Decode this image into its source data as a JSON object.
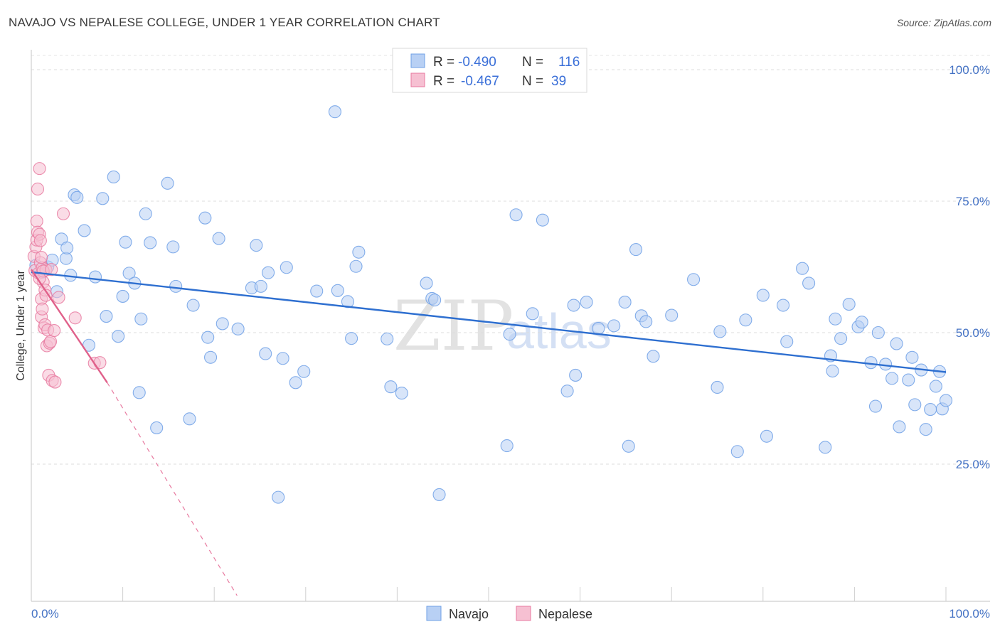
{
  "title": "NAVAJO VS NEPALESE COLLEGE, UNDER 1 YEAR CORRELATION CHART",
  "source": "Source: ZipAtlas.com",
  "colors": {
    "navajo": "#6fa0e6",
    "navajo_fill": "#b8d0f4",
    "navajo_line": "#2e6fd0",
    "nepalese": "#e87aa0",
    "nepalese_fill": "#f6c0d2",
    "nepalese_line": "#e0608a",
    "tick": "#4472c4"
  },
  "watermark": {
    "zip": "ZIP",
    "atlas": "atlas"
  },
  "chart_data": {
    "type": "scatter",
    "title": "NAVAJO VS NEPALESE COLLEGE, UNDER 1 YEAR CORRELATION CHART",
    "xlabel": "",
    "ylabel": "College, Under 1 year",
    "xlim": [
      0,
      100
    ],
    "ylim": [
      0,
      105
    ],
    "x_tick_labels": [
      "0.0%",
      "100.0%"
    ],
    "y_ticks": [
      25,
      50,
      75,
      100
    ],
    "y_tick_labels": [
      "25.0%",
      "50.0%",
      "75.0%",
      "100.0%"
    ],
    "grid": "horizontal dashed",
    "legend_placement": "top-center",
    "stats": [
      {
        "r_label": "R =",
        "r_value": "-0.490",
        "n_label": "N =",
        "n_value": "116"
      },
      {
        "r_label": "R =",
        "r_value": "-0.467",
        "n_label": "N =",
        "n_value": "39"
      }
    ],
    "series": [
      {
        "name": "Navajo",
        "trend": {
          "x": [
            0,
            100
          ],
          "y": [
            61.5,
            42.5
          ],
          "style": "solid"
        },
        "points": [
          [
            0.5,
            62.8
          ],
          [
            1.2,
            61.5
          ],
          [
            1.8,
            62.5
          ],
          [
            2.3,
            63.8
          ],
          [
            2.8,
            57.8
          ],
          [
            3.3,
            67.8
          ],
          [
            3.8,
            64.1
          ],
          [
            3.9,
            66.1
          ],
          [
            4.3,
            60.9
          ],
          [
            4.7,
            76.2
          ],
          [
            5.0,
            75.7
          ],
          [
            5.8,
            69.4
          ],
          [
            6.3,
            47.6
          ],
          [
            7.0,
            60.6
          ],
          [
            7.8,
            75.5
          ],
          [
            8.2,
            53.1
          ],
          [
            9.0,
            79.6
          ],
          [
            9.5,
            49.3
          ],
          [
            10.0,
            56.9
          ],
          [
            10.3,
            67.2
          ],
          [
            10.7,
            61.3
          ],
          [
            11.3,
            59.4
          ],
          [
            11.8,
            38.6
          ],
          [
            12.0,
            52.6
          ],
          [
            12.5,
            72.6
          ],
          [
            13.0,
            67.1
          ],
          [
            13.7,
            31.9
          ],
          [
            14.9,
            78.4
          ],
          [
            15.5,
            66.3
          ],
          [
            15.8,
            58.8
          ],
          [
            17.3,
            33.6
          ],
          [
            17.7,
            55.2
          ],
          [
            19.0,
            71.8
          ],
          [
            19.3,
            49.1
          ],
          [
            19.6,
            45.3
          ],
          [
            20.5,
            67.9
          ],
          [
            20.9,
            51.7
          ],
          [
            22.6,
            50.7
          ],
          [
            24.1,
            58.5
          ],
          [
            24.6,
            66.6
          ],
          [
            25.1,
            58.8
          ],
          [
            25.6,
            46.0
          ],
          [
            25.9,
            61.4
          ],
          [
            27.0,
            18.7
          ],
          [
            27.5,
            45.1
          ],
          [
            27.9,
            62.4
          ],
          [
            28.9,
            40.5
          ],
          [
            29.8,
            42.6
          ],
          [
            31.2,
            57.9
          ],
          [
            33.2,
            92.0
          ],
          [
            33.5,
            58.0
          ],
          [
            34.6,
            55.9
          ],
          [
            35.0,
            48.9
          ],
          [
            35.5,
            62.6
          ],
          [
            35.8,
            65.3
          ],
          [
            38.9,
            48.8
          ],
          [
            39.3,
            39.7
          ],
          [
            40.5,
            38.5
          ],
          [
            43.2,
            59.4
          ],
          [
            43.8,
            56.5
          ],
          [
            44.1,
            56.2
          ],
          [
            44.6,
            19.2
          ],
          [
            52.0,
            28.5
          ],
          [
            52.3,
            49.7
          ],
          [
            53.0,
            72.4
          ],
          [
            54.8,
            53.6
          ],
          [
            55.9,
            71.4
          ],
          [
            58.6,
            38.9
          ],
          [
            59.3,
            55.2
          ],
          [
            59.5,
            41.9
          ],
          [
            60.7,
            55.8
          ],
          [
            62.0,
            50.8
          ],
          [
            63.7,
            51.3
          ],
          [
            64.9,
            55.8
          ],
          [
            65.3,
            28.4
          ],
          [
            66.1,
            65.8
          ],
          [
            66.7,
            53.2
          ],
          [
            67.2,
            52.1
          ],
          [
            68.0,
            45.5
          ],
          [
            70.0,
            53.3
          ],
          [
            72.4,
            60.1
          ],
          [
            75.0,
            39.6
          ],
          [
            75.3,
            50.2
          ],
          [
            77.2,
            27.4
          ],
          [
            78.1,
            52.4
          ],
          [
            80.0,
            57.1
          ],
          [
            80.4,
            30.3
          ],
          [
            82.2,
            55.2
          ],
          [
            82.6,
            48.3
          ],
          [
            84.3,
            62.2
          ],
          [
            85.0,
            59.4
          ],
          [
            86.8,
            28.2
          ],
          [
            87.4,
            45.6
          ],
          [
            87.6,
            42.7
          ],
          [
            87.9,
            52.6
          ],
          [
            88.5,
            48.9
          ],
          [
            89.4,
            55.4
          ],
          [
            90.4,
            51.1
          ],
          [
            90.8,
            52.0
          ],
          [
            91.8,
            44.3
          ],
          [
            92.3,
            36.0
          ],
          [
            92.6,
            50.0
          ],
          [
            93.4,
            44.0
          ],
          [
            94.1,
            41.3
          ],
          [
            94.6,
            47.9
          ],
          [
            94.9,
            32.1
          ],
          [
            95.9,
            41.0
          ],
          [
            96.3,
            45.3
          ],
          [
            96.6,
            36.3
          ],
          [
            97.3,
            42.9
          ],
          [
            97.8,
            31.6
          ],
          [
            98.3,
            35.4
          ],
          [
            98.9,
            39.8
          ],
          [
            99.3,
            42.6
          ],
          [
            99.6,
            35.5
          ],
          [
            100.0,
            37.1
          ]
        ]
      },
      {
        "name": "Nepalese",
        "trend": {
          "x": [
            0,
            8.3
          ],
          "y": [
            62.0,
            40.5
          ],
          "style": "solid",
          "extension": {
            "x": [
              8.3,
              22.5
            ],
            "y": [
              40.5,
              0
            ],
            "style": "dashed"
          }
        },
        "points": [
          [
            0.3,
            64.5
          ],
          [
            0.4,
            61.8
          ],
          [
            0.5,
            66.3
          ],
          [
            0.6,
            67.6
          ],
          [
            0.6,
            71.2
          ],
          [
            0.7,
            69.1
          ],
          [
            0.7,
            77.3
          ],
          [
            0.8,
            61.3
          ],
          [
            0.9,
            68.7
          ],
          [
            0.9,
            81.2
          ],
          [
            1.0,
            67.5
          ],
          [
            1.0,
            63.3
          ],
          [
            1.1,
            56.4
          ],
          [
            1.1,
            53.0
          ],
          [
            1.2,
            54.5
          ],
          [
            1.2,
            62.3
          ],
          [
            1.3,
            59.6
          ],
          [
            1.4,
            50.9
          ],
          [
            1.5,
            58.1
          ],
          [
            1.5,
            51.5
          ],
          [
            1.6,
            61.9
          ],
          [
            1.6,
            57.1
          ],
          [
            1.7,
            47.5
          ],
          [
            1.8,
            50.5
          ],
          [
            1.9,
            41.9
          ],
          [
            2.0,
            48.0
          ],
          [
            2.1,
            48.3
          ],
          [
            2.3,
            40.9
          ],
          [
            2.5,
            50.4
          ],
          [
            2.6,
            40.6
          ],
          [
            3.0,
            56.7
          ],
          [
            3.5,
            72.6
          ],
          [
            4.8,
            52.8
          ],
          [
            6.9,
            44.2
          ],
          [
            7.5,
            44.3
          ],
          [
            1.3,
            61.7
          ],
          [
            0.9,
            60.3
          ],
          [
            1.1,
            64.3
          ],
          [
            2.2,
            62.0
          ]
        ]
      }
    ]
  },
  "bottom_legend": [
    {
      "label": "Navajo"
    },
    {
      "label": "Nepalese"
    }
  ]
}
